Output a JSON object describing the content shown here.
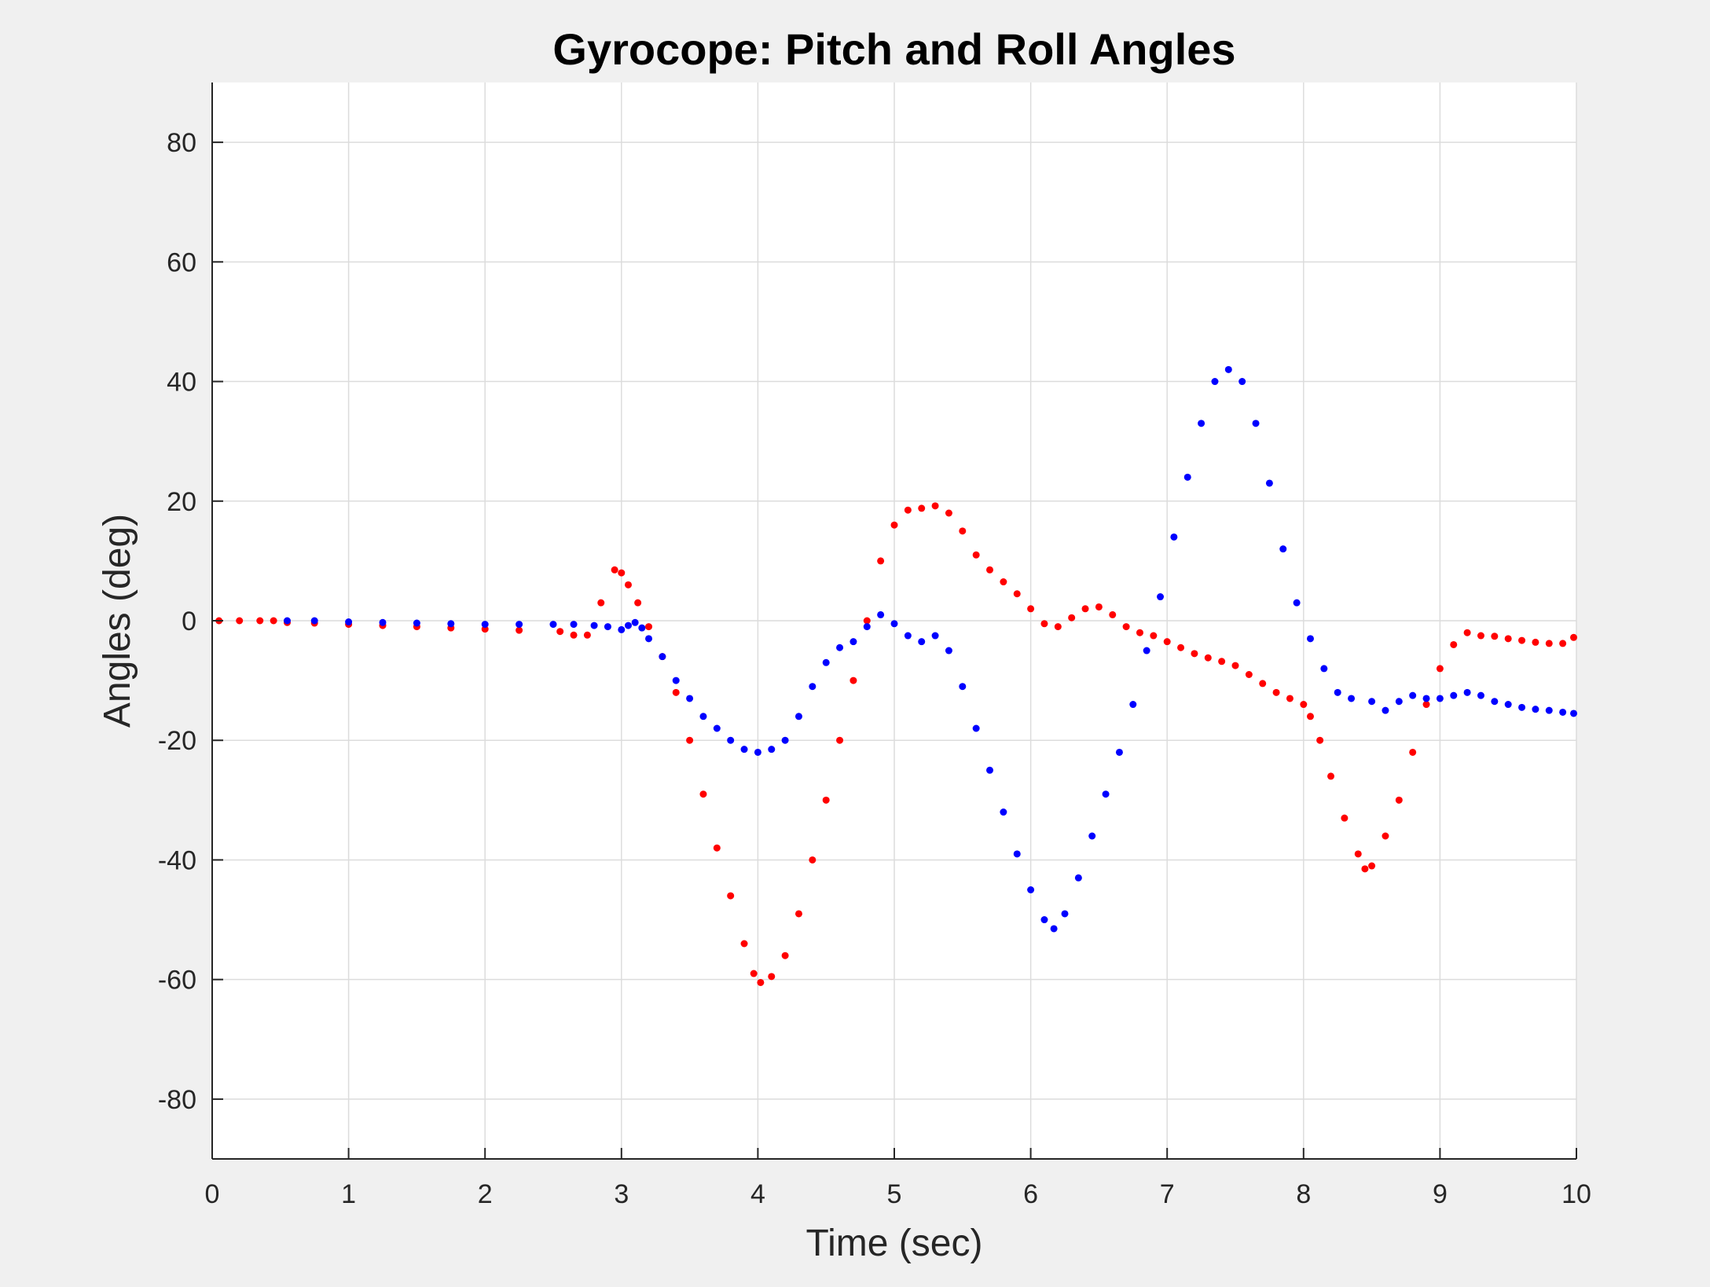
{
  "chart_data": {
    "type": "scatter",
    "title": "Gyrocope: Pitch and Roll Angles",
    "xlabel": "Time (sec)",
    "ylabel": "Angles (deg)",
    "xlim": [
      0,
      10
    ],
    "ylim": [
      -90,
      90
    ],
    "xticks": [
      "0",
      "1",
      "2",
      "3",
      "4",
      "5",
      "6",
      "7",
      "8",
      "9",
      "10"
    ],
    "yticks": [
      "-80",
      "-60",
      "-40",
      "-20",
      "0",
      "20",
      "40",
      "60",
      "80"
    ],
    "grid": true,
    "legend": "none",
    "colors": {
      "red_series": "#ff0000",
      "blue_series": "#0000ff",
      "grid": "#dcdcdc",
      "axes_bg": "#ffffff"
    },
    "series": [
      {
        "color": "#ff0000",
        "points": [
          [
            0.05,
            0
          ],
          [
            0.2,
            0
          ],
          [
            0.35,
            0
          ],
          [
            0.45,
            0
          ],
          [
            0.55,
            -0.3
          ],
          [
            0.75,
            -0.4
          ],
          [
            1.0,
            -0.6
          ],
          [
            1.25,
            -0.8
          ],
          [
            1.5,
            -1.0
          ],
          [
            1.75,
            -1.2
          ],
          [
            2.0,
            -1.4
          ],
          [
            2.25,
            -1.6
          ],
          [
            2.55,
            -1.8
          ],
          [
            2.65,
            -2.4
          ],
          [
            2.75,
            -2.4
          ],
          [
            2.85,
            3
          ],
          [
            2.95,
            8.5
          ],
          [
            3.0,
            8
          ],
          [
            3.05,
            6
          ],
          [
            3.12,
            3
          ],
          [
            3.2,
            -1
          ],
          [
            3.3,
            -6
          ],
          [
            3.4,
            -12
          ],
          [
            3.5,
            -20
          ],
          [
            3.6,
            -29
          ],
          [
            3.7,
            -38
          ],
          [
            3.8,
            -46
          ],
          [
            3.9,
            -54
          ],
          [
            3.97,
            -59
          ],
          [
            4.02,
            -60.5
          ],
          [
            4.1,
            -59.5
          ],
          [
            4.2,
            -56
          ],
          [
            4.3,
            -49
          ],
          [
            4.4,
            -40
          ],
          [
            4.5,
            -30
          ],
          [
            4.6,
            -20
          ],
          [
            4.7,
            -10
          ],
          [
            4.8,
            0
          ],
          [
            4.9,
            10
          ],
          [
            5.0,
            16
          ],
          [
            5.1,
            18.5
          ],
          [
            5.2,
            18.8
          ],
          [
            5.3,
            19.2
          ],
          [
            5.4,
            18
          ],
          [
            5.5,
            15
          ],
          [
            5.6,
            11
          ],
          [
            5.7,
            8.5
          ],
          [
            5.8,
            6.5
          ],
          [
            5.9,
            4.5
          ],
          [
            6.0,
            2
          ],
          [
            6.1,
            -0.5
          ],
          [
            6.2,
            -1
          ],
          [
            6.3,
            0.5
          ],
          [
            6.4,
            2
          ],
          [
            6.5,
            2.3
          ],
          [
            6.6,
            1
          ],
          [
            6.7,
            -1
          ],
          [
            6.8,
            -2
          ],
          [
            6.9,
            -2.5
          ],
          [
            7.0,
            -3.5
          ],
          [
            7.1,
            -4.5
          ],
          [
            7.2,
            -5.5
          ],
          [
            7.3,
            -6.2
          ],
          [
            7.4,
            -6.8
          ],
          [
            7.5,
            -7.5
          ],
          [
            7.6,
            -9
          ],
          [
            7.7,
            -10.5
          ],
          [
            7.8,
            -12
          ],
          [
            7.9,
            -13
          ],
          [
            8.0,
            -14
          ],
          [
            8.05,
            -16
          ],
          [
            8.12,
            -20
          ],
          [
            8.2,
            -26
          ],
          [
            8.3,
            -33
          ],
          [
            8.4,
            -39
          ],
          [
            8.45,
            -41.5
          ],
          [
            8.5,
            -41
          ],
          [
            8.6,
            -36
          ],
          [
            8.7,
            -30
          ],
          [
            8.8,
            -22
          ],
          [
            8.9,
            -14
          ],
          [
            9.0,
            -8
          ],
          [
            9.1,
            -4
          ],
          [
            9.2,
            -2
          ],
          [
            9.3,
            -2.5
          ],
          [
            9.4,
            -2.6
          ],
          [
            9.5,
            -3
          ],
          [
            9.6,
            -3.3
          ],
          [
            9.7,
            -3.6
          ],
          [
            9.8,
            -3.8
          ],
          [
            9.9,
            -3.8
          ],
          [
            9.98,
            -2.8
          ]
        ]
      },
      {
        "color": "#0000ff",
        "points": [
          [
            0.55,
            0
          ],
          [
            0.75,
            0
          ],
          [
            1.0,
            -0.2
          ],
          [
            1.25,
            -0.3
          ],
          [
            1.5,
            -0.4
          ],
          [
            1.75,
            -0.5
          ],
          [
            2.0,
            -0.6
          ],
          [
            2.25,
            -0.6
          ],
          [
            2.5,
            -0.6
          ],
          [
            2.65,
            -0.6
          ],
          [
            2.8,
            -0.8
          ],
          [
            2.9,
            -1
          ],
          [
            3.0,
            -1.5
          ],
          [
            3.05,
            -0.8
          ],
          [
            3.1,
            -0.3
          ],
          [
            3.15,
            -1.2
          ],
          [
            3.2,
            -3
          ],
          [
            3.3,
            -6
          ],
          [
            3.4,
            -10
          ],
          [
            3.5,
            -13
          ],
          [
            3.6,
            -16
          ],
          [
            3.7,
            -18
          ],
          [
            3.8,
            -20
          ],
          [
            3.9,
            -21.5
          ],
          [
            4.0,
            -22
          ],
          [
            4.1,
            -21.5
          ],
          [
            4.2,
            -20
          ],
          [
            4.3,
            -16
          ],
          [
            4.4,
            -11
          ],
          [
            4.5,
            -7
          ],
          [
            4.6,
            -4.5
          ],
          [
            4.7,
            -3.5
          ],
          [
            4.8,
            -1
          ],
          [
            4.9,
            1
          ],
          [
            5.0,
            -0.5
          ],
          [
            5.1,
            -2.5
          ],
          [
            5.2,
            -3.5
          ],
          [
            5.3,
            -2.5
          ],
          [
            5.4,
            -5
          ],
          [
            5.5,
            -11
          ],
          [
            5.6,
            -18
          ],
          [
            5.7,
            -25
          ],
          [
            5.8,
            -32
          ],
          [
            5.9,
            -39
          ],
          [
            6.0,
            -45
          ],
          [
            6.1,
            -50
          ],
          [
            6.17,
            -51.5
          ],
          [
            6.25,
            -49
          ],
          [
            6.35,
            -43
          ],
          [
            6.45,
            -36
          ],
          [
            6.55,
            -29
          ],
          [
            6.65,
            -22
          ],
          [
            6.75,
            -14
          ],
          [
            6.85,
            -5
          ],
          [
            6.95,
            4
          ],
          [
            7.05,
            14
          ],
          [
            7.15,
            24
          ],
          [
            7.25,
            33
          ],
          [
            7.35,
            40
          ],
          [
            7.45,
            42
          ],
          [
            7.55,
            40
          ],
          [
            7.65,
            33
          ],
          [
            7.75,
            23
          ],
          [
            7.85,
            12
          ],
          [
            7.95,
            3
          ],
          [
            8.05,
            -3
          ],
          [
            8.15,
            -8
          ],
          [
            8.25,
            -12
          ],
          [
            8.35,
            -13
          ],
          [
            8.5,
            -13.5
          ],
          [
            8.6,
            -15
          ],
          [
            8.7,
            -13.5
          ],
          [
            8.8,
            -12.5
          ],
          [
            8.9,
            -13
          ],
          [
            9.0,
            -13
          ],
          [
            9.1,
            -12.5
          ],
          [
            9.2,
            -12
          ],
          [
            9.3,
            -12.5
          ],
          [
            9.4,
            -13.5
          ],
          [
            9.5,
            -14
          ],
          [
            9.6,
            -14.5
          ],
          [
            9.7,
            -14.8
          ],
          [
            9.8,
            -15
          ],
          [
            9.9,
            -15.3
          ],
          [
            9.98,
            -15.5
          ]
        ]
      }
    ]
  }
}
